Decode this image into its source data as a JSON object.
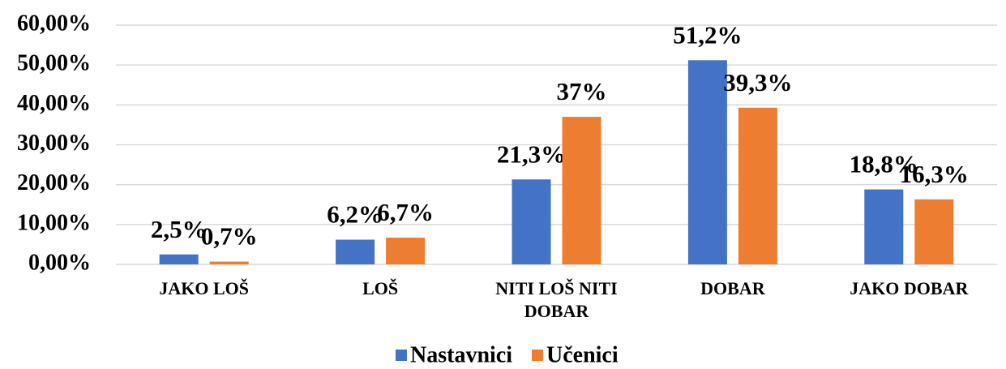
{
  "chart_data": {
    "type": "bar",
    "categories": [
      "JAKO LOŠ",
      "LOŠ",
      "NITI LOŠ NITI DOBAR",
      "DOBAR",
      "JAKO DOBAR"
    ],
    "series": [
      {
        "name": "Nastavnici",
        "color": "#4472c4",
        "values": [
          2.5,
          6.2,
          21.3,
          51.2,
          18.8
        ],
        "value_labels": [
          "2,5%",
          "6,2%",
          "21,3%",
          "51,2%",
          "18,8%"
        ]
      },
      {
        "name": "Učenici",
        "color": "#ed7d31",
        "values": [
          0.7,
          6.7,
          37,
          39.3,
          16.3
        ],
        "value_labels": [
          "0,7%",
          "6,7%",
          "37%",
          "39,3%",
          "16,3%"
        ]
      }
    ],
    "ylim": [
      0,
      60
    ],
    "yticks": [
      {
        "value": 0,
        "label": "0,00%"
      },
      {
        "value": 10,
        "label": "10,00%"
      },
      {
        "value": 20,
        "label": "20,00%"
      },
      {
        "value": 30,
        "label": "30,00%"
      },
      {
        "value": 40,
        "label": "40,00%"
      },
      {
        "value": 50,
        "label": "50,00%"
      },
      {
        "value": 60,
        "label": "60,00%"
      }
    ],
    "grid": true,
    "legend": "bottom"
  }
}
